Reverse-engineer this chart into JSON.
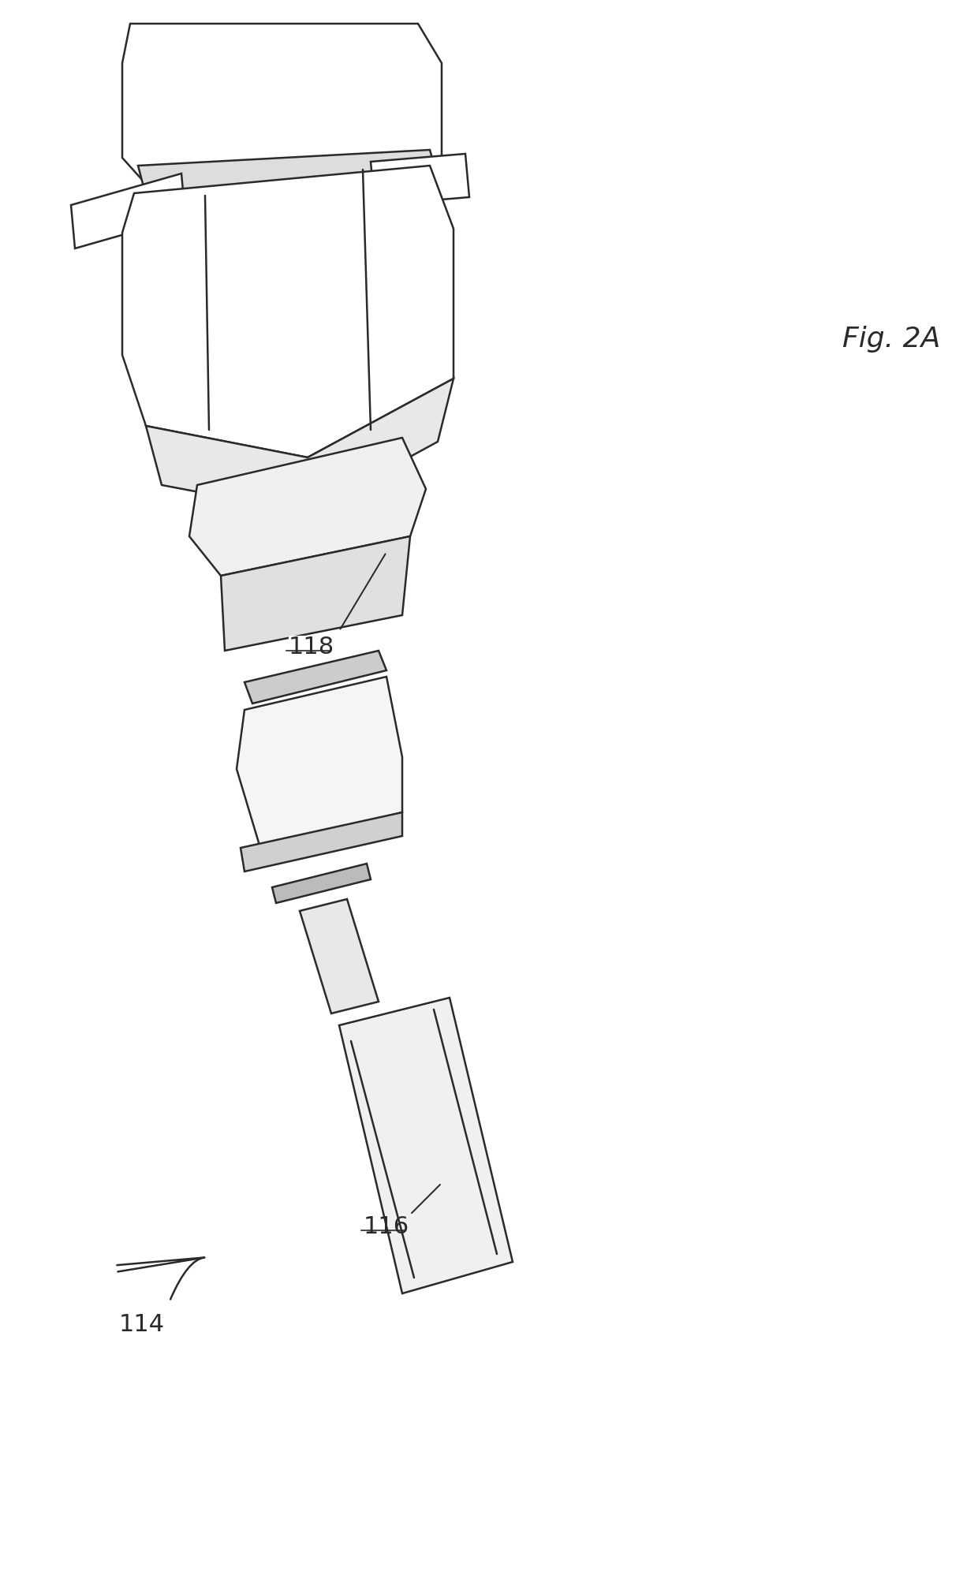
{
  "fig_label": "Fig. 2A",
  "label_114": "114",
  "label_116": "116",
  "label_118": "118",
  "background_color": "#ffffff",
  "line_color": "#2a2a2a",
  "line_width": 1.8,
  "fig_width": 12.4,
  "fig_height": 19.97
}
